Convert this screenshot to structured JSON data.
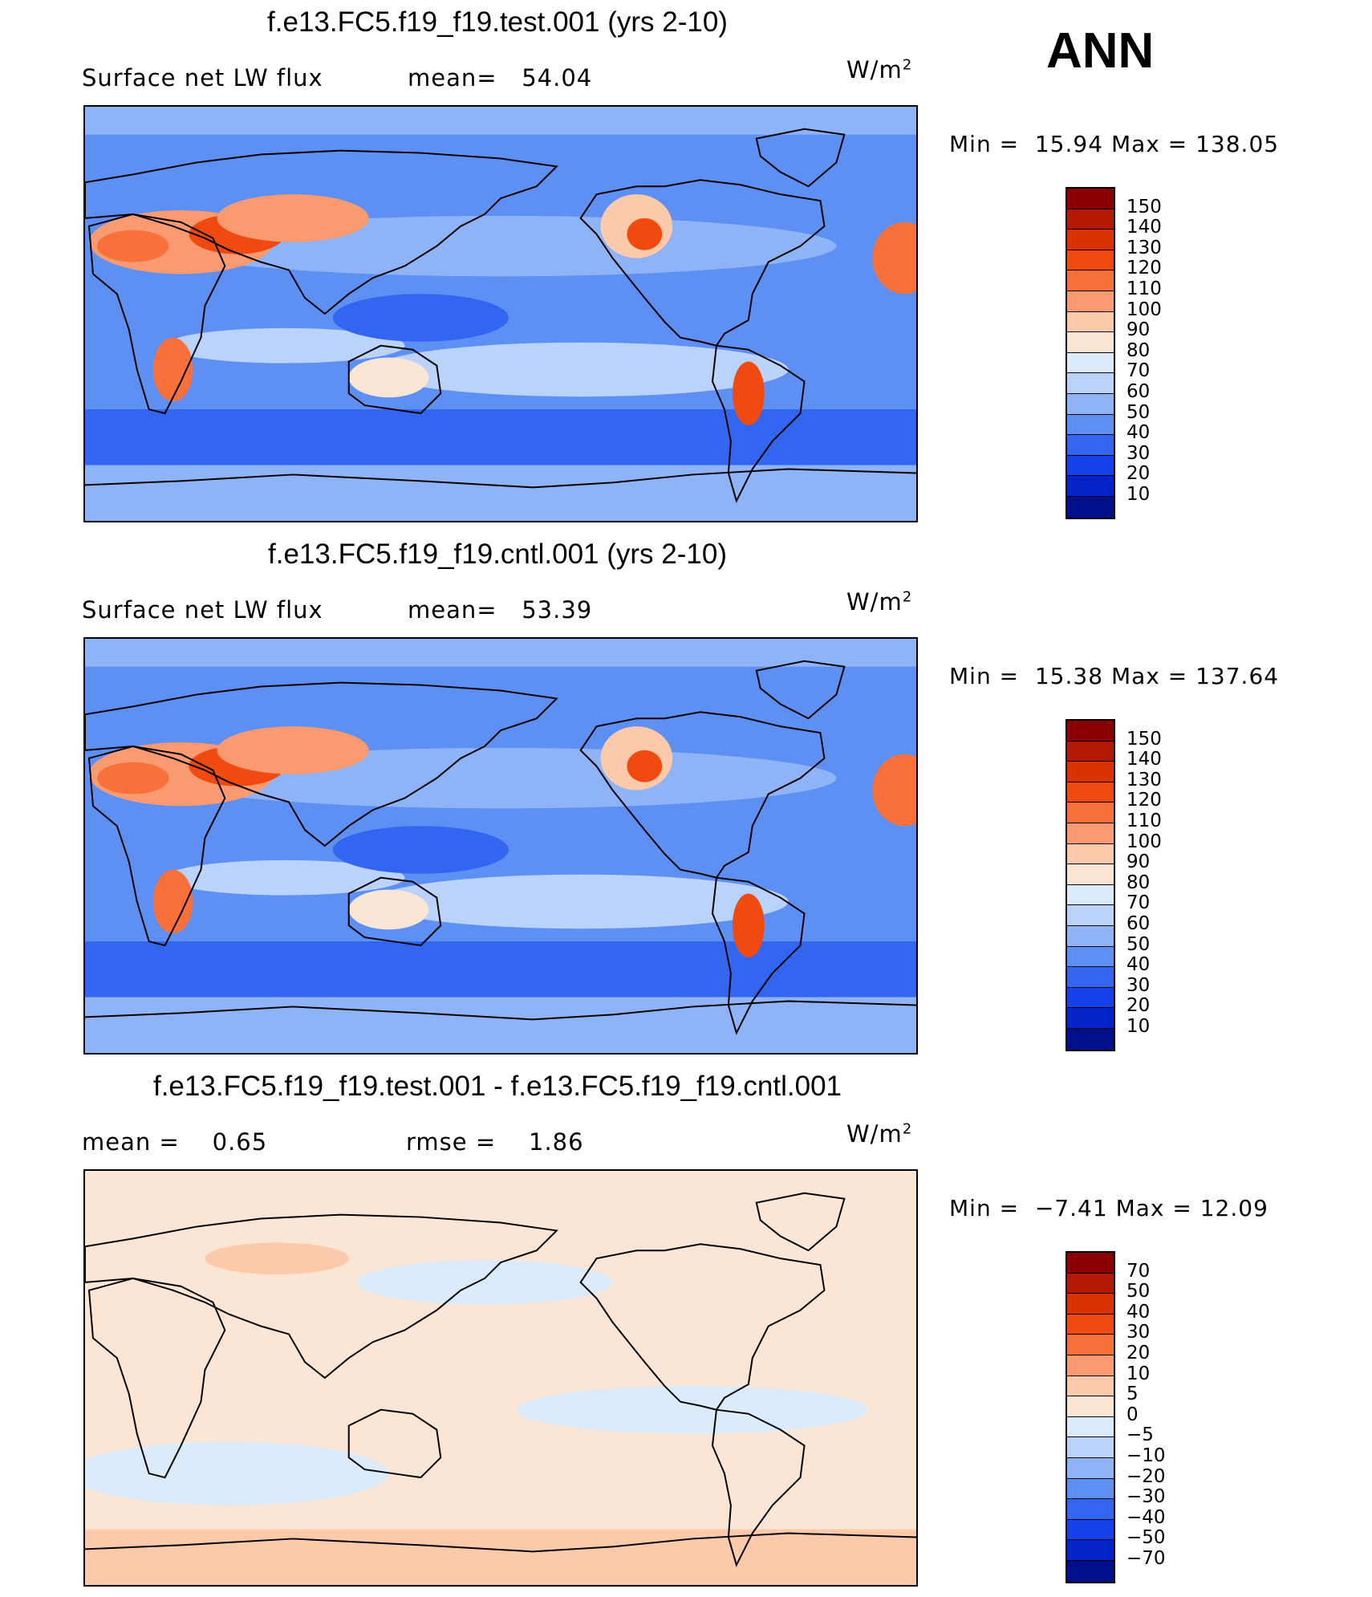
{
  "season": "ANN",
  "units": "W/m",
  "units_sup": "2",
  "panels": [
    {
      "title": "f.e13.FC5.f19_f19.test.001 (yrs 2-10)",
      "left_text": "Surface net LW flux",
      "middle_text": "mean=   54.04",
      "min_label": "Min =",
      "min_value": "15.94",
      "max_label": "Max =",
      "max_value": "138.05",
      "colorbar": {
        "labels": [
          "150",
          "140",
          "130",
          "120",
          "110",
          "100",
          "90",
          "80",
          "70",
          "60",
          "50",
          "40",
          "30",
          "20",
          "10"
        ],
        "colors": [
          "#8a0000",
          "#b31800",
          "#d93100",
          "#f04a10",
          "#f8703a",
          "#fa9a70",
          "#fcc9ab",
          "#fbe6d6",
          "#dcebfb",
          "#b9d3fa",
          "#8eb3f6",
          "#5e8ff2",
          "#3266f0",
          "#1540ea",
          "#0424c9",
          "#000f8a"
        ]
      },
      "map_kind": "field"
    },
    {
      "title": "f.e13.FC5.f19_f19.cntl.001 (yrs 2-10)",
      "left_text": "Surface net LW flux",
      "middle_text": "mean=   53.39",
      "min_label": "Min =",
      "min_value": "15.38",
      "max_label": "Max =",
      "max_value": "137.64",
      "colorbar": {
        "labels": [
          "150",
          "140",
          "130",
          "120",
          "110",
          "100",
          "90",
          "80",
          "70",
          "60",
          "50",
          "40",
          "30",
          "20",
          "10"
        ],
        "colors": [
          "#8a0000",
          "#b31800",
          "#d93100",
          "#f04a10",
          "#f8703a",
          "#fa9a70",
          "#fcc9ab",
          "#fbe6d6",
          "#dcebfb",
          "#b9d3fa",
          "#8eb3f6",
          "#5e8ff2",
          "#3266f0",
          "#1540ea",
          "#0424c9",
          "#000f8a"
        ]
      },
      "map_kind": "field"
    },
    {
      "title": "f.e13.FC5.f19_f19.test.001 - f.e13.FC5.f19_f19.cntl.001",
      "left_text": "mean =    0.65",
      "middle_text": "rmse =    1.86",
      "min_label": "Min =",
      "min_value": "−7.41",
      "max_label": "Max =",
      "max_value": "12.09",
      "colorbar": {
        "labels": [
          "70",
          "50",
          "40",
          "30",
          "20",
          "10",
          "5",
          "0",
          "−5",
          "−10",
          "−20",
          "−30",
          "−40",
          "−50",
          "−70"
        ],
        "colors": [
          "#8a0000",
          "#b31800",
          "#d93100",
          "#f04a10",
          "#f8703a",
          "#fa9a70",
          "#fcc9ab",
          "#fbe6d6",
          "#dcebfb",
          "#b9d3fa",
          "#8eb3f6",
          "#5e8ff2",
          "#3266f0",
          "#1540ea",
          "#0424c9",
          "#000f8a"
        ]
      },
      "map_kind": "difference"
    }
  ]
}
